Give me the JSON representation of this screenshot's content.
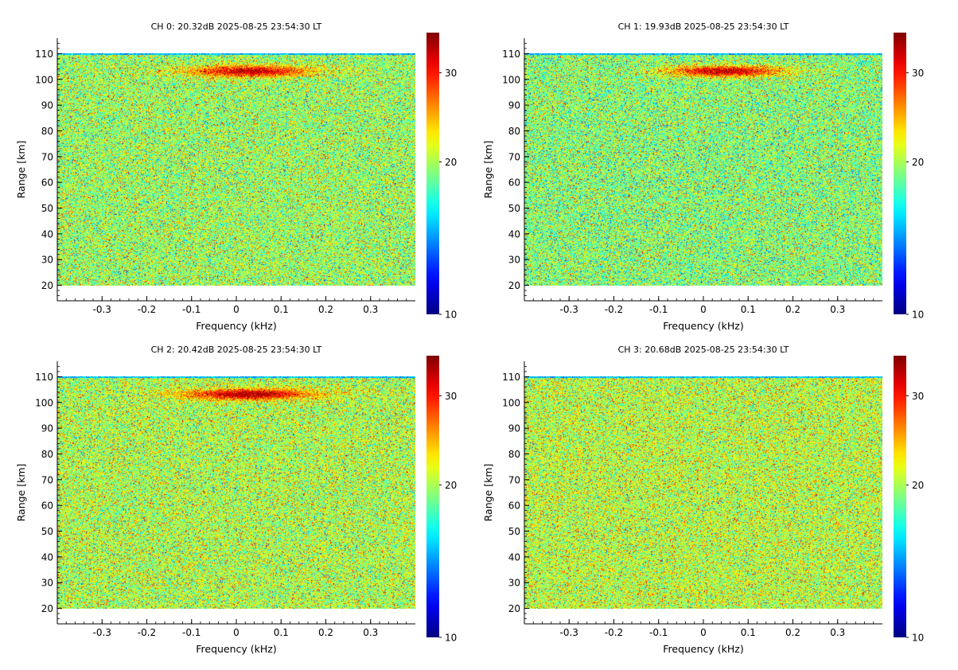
{
  "figure": {
    "xlabel": "Frequency (kHz)",
    "ylabel": "Range [km]",
    "xlim": [
      -0.4,
      0.4
    ],
    "ylim": [
      14,
      116
    ],
    "data_range_km": [
      20,
      110
    ],
    "xticks": [
      -0.3,
      -0.2,
      -0.1,
      0,
      0.1,
      0.2,
      0.3
    ],
    "yticks": [
      20,
      30,
      40,
      50,
      60,
      70,
      80,
      90,
      100,
      110
    ],
    "colorbar": {
      "ticks": [
        10,
        20,
        30
      ],
      "range": [
        10,
        36
      ],
      "colormap": "jet",
      "scale": "log"
    },
    "background": "#ffffff"
  },
  "chart_data": [
    {
      "type": "heatmap",
      "title": "CH 0: 20.32dB 2025-08-25 23:54:30 LT",
      "echo": {
        "range_km": 103,
        "freq_center_khz": 0.03,
        "freq_halfwidth_khz": 0.16,
        "peak_db": 34
      },
      "noise_db": 19.5
    },
    {
      "type": "heatmap",
      "title": "CH 1: 19.93dB 2025-08-25 23:54:30 LT",
      "echo": {
        "range_km": 103,
        "freq_center_khz": 0.05,
        "freq_halfwidth_khz": 0.15,
        "peak_db": 34
      },
      "noise_db": 19.0
    },
    {
      "type": "heatmap",
      "title": "CH 2: 20.42dB 2025-08-25 23:54:30 LT",
      "echo": {
        "range_km": 103,
        "freq_center_khz": 0.03,
        "freq_halfwidth_khz": 0.17,
        "peak_db": 35
      },
      "noise_db": 20.0
    },
    {
      "type": "heatmap",
      "title": "CH 3: 20.68dB 2025-08-25 23:54:30 LT",
      "noise_db": 20.3
    }
  ]
}
